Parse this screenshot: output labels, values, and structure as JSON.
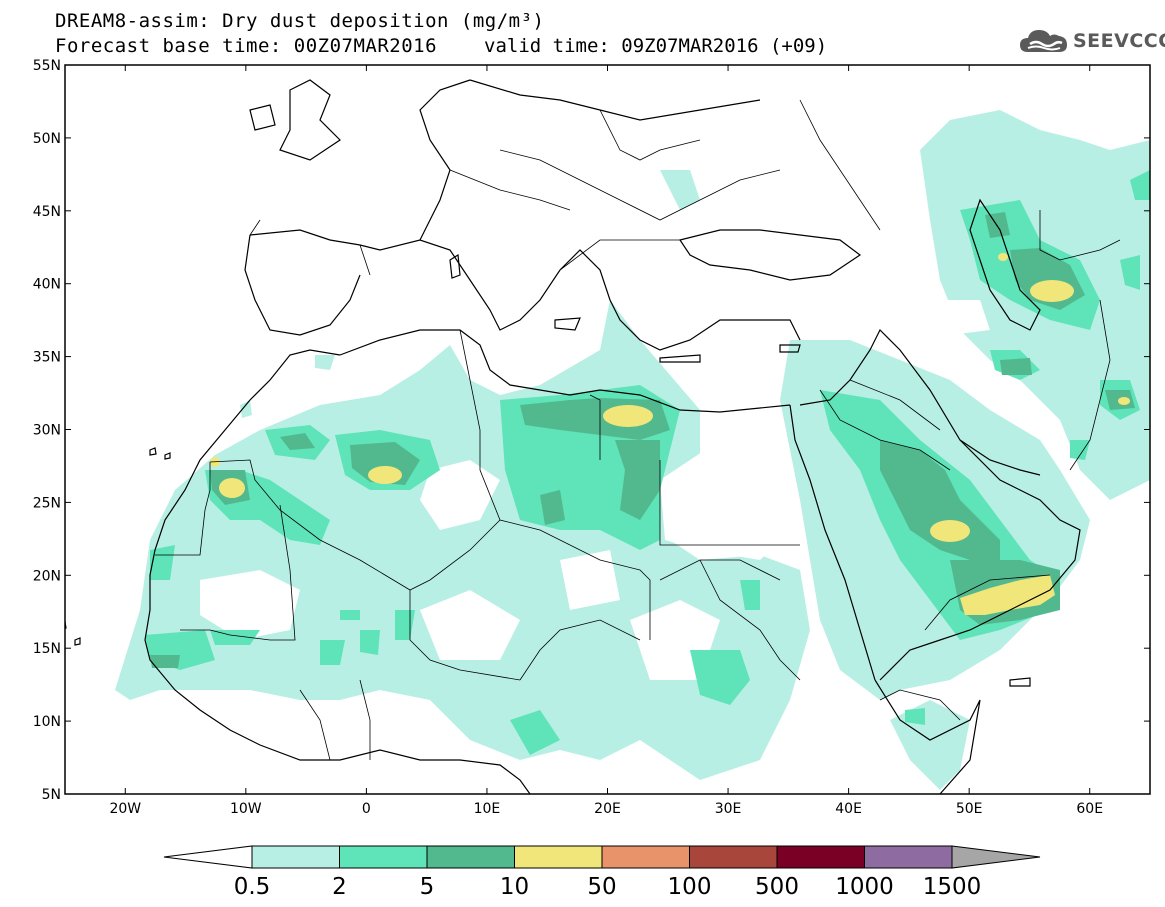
{
  "title_line1": "DREAM8-assim: Dry dust deposition (mg/m³)",
  "title_line2": "Forecast base time: 00Z07MAR2016",
  "title_line2b": "valid time: 09Z07MAR2016 (+09)",
  "logo_text": "SEEVCCC",
  "logo_icon": "cloud-logo-icon",
  "map_data": {
    "lon_range": [
      -25,
      65
    ],
    "lat_range": [
      5,
      55
    ],
    "lat_ticks": [
      {
        "lat": 55,
        "label": "55N"
      },
      {
        "lat": 50,
        "label": "50N"
      },
      {
        "lat": 45,
        "label": "45N"
      },
      {
        "lat": 40,
        "label": "40N"
      },
      {
        "lat": 35,
        "label": "35N"
      },
      {
        "lat": 30,
        "label": "30N"
      },
      {
        "lat": 25,
        "label": "25N"
      },
      {
        "lat": 20,
        "label": "20N"
      },
      {
        "lat": 15,
        "label": "15N"
      },
      {
        "lat": 10,
        "label": "10N"
      },
      {
        "lat": 5,
        "label": "5N"
      }
    ],
    "lon_ticks": [
      {
        "lon": -20,
        "label": "20W"
      },
      {
        "lon": -10,
        "label": "10W"
      },
      {
        "lon": 0,
        "label": "0"
      },
      {
        "lon": 10,
        "label": "10E"
      },
      {
        "lon": 20,
        "label": "20E"
      },
      {
        "lon": 30,
        "label": "30E"
      },
      {
        "lon": 40,
        "label": "40E"
      },
      {
        "lon": 50,
        "label": "50E"
      },
      {
        "lon": 60,
        "label": "60E"
      }
    ]
  },
  "colorbar": {
    "levels": [
      "0.5",
      "2",
      "5",
      "10",
      "50",
      "100",
      "500",
      "1000",
      "1500"
    ],
    "colors": [
      "#ffffff",
      "#b8efe4",
      "#5fe3b8",
      "#52b98e",
      "#f0e67a",
      "#e8936a",
      "#a8463c",
      "#7a0026",
      "#8e6ba0",
      "#a6a6a6"
    ]
  }
}
